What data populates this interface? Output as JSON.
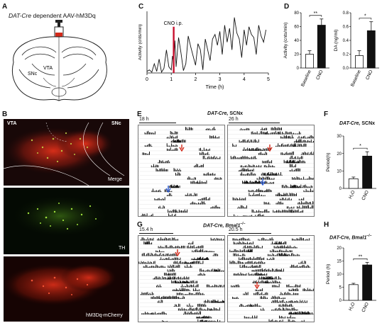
{
  "panel_letters": {
    "a": "A",
    "b": "B",
    "c": "C",
    "d": "D",
    "e": "E",
    "f": "F",
    "g": "G",
    "h": "H"
  },
  "panel_a": {
    "title_italic": "DAT-Cre",
    "title_rest": " dependent AAV-hM3Dq",
    "snc": "SNc",
    "vta": "VTA"
  },
  "panel_b": {
    "vta": "VTA",
    "snc": "SNc",
    "merge": "Merge",
    "th": "TH",
    "mcherry": "hM3Dq-mCherry"
  },
  "panel_c": {
    "annotation": "CNO i.p."
  },
  "panel_e": {
    "title_italic": "DAT-Cre,",
    "title_rest": " SCNx",
    "period_left": "18 h",
    "period_right": "26 h"
  },
  "panel_g": {
    "title_italic": "DAT-Cre, Bmal1",
    "title_sup": "−/−",
    "period_left": "15.4 h",
    "period_right": "20.5 h"
  },
  "panel_f_title_italic": "DAT-Cre,",
  "panel_f_title_rest": " SCNx",
  "panel_h_title_italic": "DAT-Cre, Bmal1",
  "panel_h_title_sup": "−/−",
  "colors": {
    "bar_black": "#111111",
    "cno_line": "#c8102e",
    "mcherry": "#d42a1a",
    "th_green": "#8fd13a"
  },
  "chart_data": [
    {
      "type": "line",
      "panel": "C",
      "xlabel": "Time (h)",
      "ylabel": "Activity (cnts/min)",
      "xlim": [
        0,
        5
      ],
      "xticks": [
        "0",
        "1",
        "2",
        "3",
        "4",
        "5"
      ],
      "event": {
        "label": "CNO i.p.",
        "x": 1.1
      },
      "x": [
        0,
        0.1,
        0.2,
        0.3,
        0.4,
        0.5,
        0.6,
        0.7,
        0.8,
        0.9,
        1.0,
        1.05,
        1.1,
        1.15,
        1.2,
        1.3,
        1.4,
        1.5,
        1.6,
        1.7,
        1.8,
        1.9,
        2.0,
        2.1,
        2.2,
        2.3,
        2.4,
        2.5,
        2.6,
        2.7,
        2.8,
        2.9,
        3.0,
        3.1,
        3.2,
        3.3,
        3.4,
        3.5,
        3.6,
        3.7,
        3.8,
        3.9,
        4.0,
        4.1,
        4.2,
        4.3,
        4.4,
        4.5,
        4.6,
        4.7,
        4.8,
        4.9
      ],
      "y": [
        2,
        4,
        1,
        12,
        2,
        18,
        1,
        6,
        30,
        8,
        4,
        22,
        14,
        42,
        8,
        46,
        26,
        3,
        12,
        48,
        34,
        22,
        10,
        38,
        30,
        4,
        44,
        30,
        16,
        44,
        50,
        36,
        54,
        24,
        62,
        40,
        58,
        30,
        72,
        52,
        44,
        20,
        56,
        36,
        60,
        50,
        46,
        24,
        62,
        48,
        40,
        56
      ]
    },
    {
      "type": "bar",
      "panel": "D-left",
      "categories": [
        "Baseline",
        "CNO"
      ],
      "values": [
        20,
        62
      ],
      "errors": [
        5,
        9
      ],
      "ylabel": "Activity (cnts/min)",
      "ylim": [
        0,
        80
      ],
      "yticks": [
        "0",
        "20",
        "40",
        "60",
        "80"
      ],
      "significance": "**"
    },
    {
      "type": "bar",
      "panel": "D-right",
      "categories": [
        "Baseline",
        "CNO"
      ],
      "values": [
        0.18,
        0.54
      ],
      "errors": [
        0.07,
        0.13
      ],
      "ylabel": "DA (ng/ml)",
      "ylim": [
        0,
        0.8
      ],
      "yticks": [
        "0.0",
        "0.2",
        "0.4",
        "0.6",
        "0.8"
      ],
      "significance": "*"
    },
    {
      "type": "bar",
      "panel": "F",
      "categories": [
        "H₂O",
        "CNO"
      ],
      "values": [
        5.5,
        18.5
      ],
      "errors": [
        1,
        2.5
      ],
      "ylabel": "Period(h)",
      "ylim": [
        0,
        30
      ],
      "yticks": [
        "0",
        "10",
        "20",
        "30"
      ],
      "significance": "*"
    },
    {
      "type": "bar",
      "panel": "H",
      "categories": [
        "H₂O",
        "CNO"
      ],
      "values": [
        6,
        13.5
      ],
      "errors": [
        0.5,
        1
      ],
      "ylabel": "Period (h)",
      "ylim": [
        0,
        20
      ],
      "yticks": [
        "0",
        "5",
        "10",
        "15",
        "20"
      ],
      "significance": "**"
    }
  ]
}
